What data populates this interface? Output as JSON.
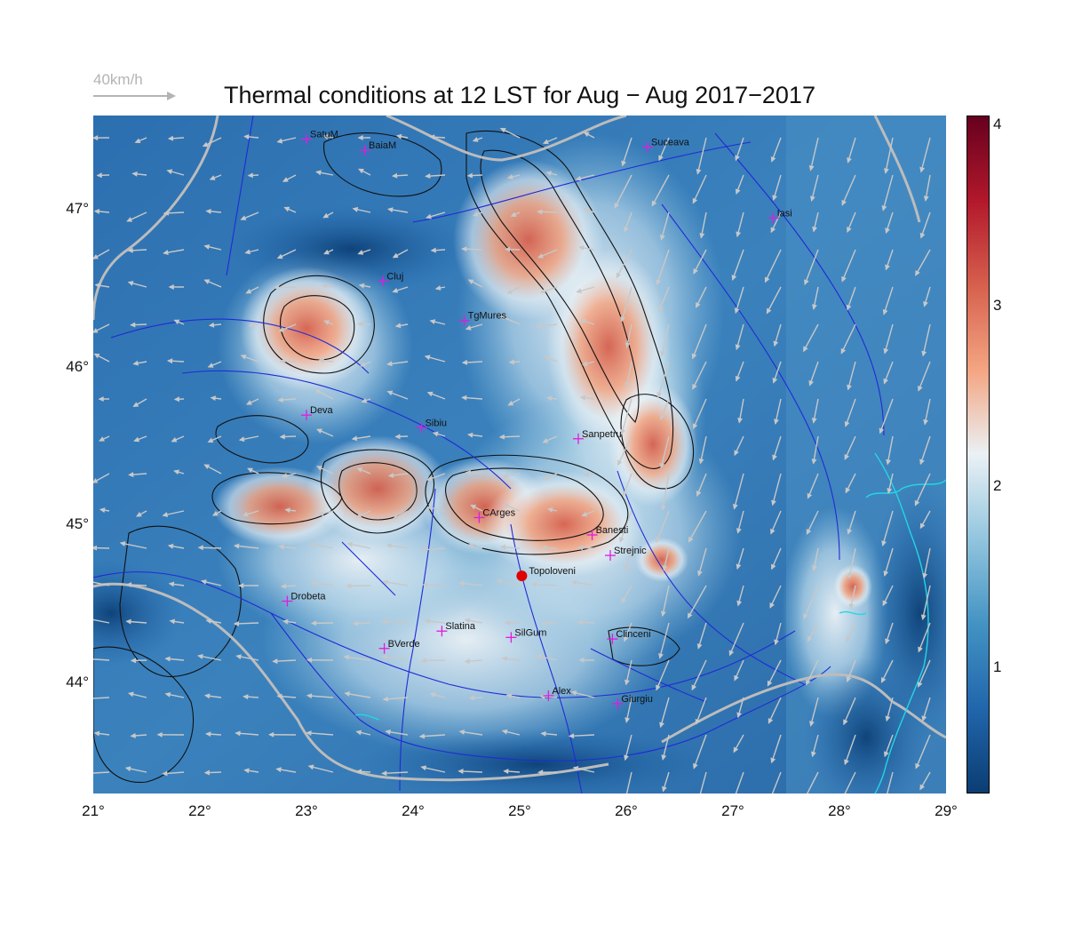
{
  "title": "Thermal conditions at 12 LST for Aug − Aug  2017−2017",
  "wind_legend": {
    "label": "40km/h",
    "color": "#b4b4b4"
  },
  "axes": {
    "x_ticks": [
      "21°",
      "22°",
      "23°",
      "24°",
      "25°",
      "26°",
      "27°",
      "28°",
      "29°"
    ],
    "x_values": [
      21,
      22,
      23,
      24,
      25,
      26,
      27,
      28,
      29
    ],
    "y_ticks": [
      "44°",
      "45°",
      "46°",
      "47°"
    ],
    "y_values": [
      44,
      45,
      46,
      47
    ],
    "lon_range": [
      21,
      29
    ],
    "lat_range": [
      43.3,
      47.6
    ]
  },
  "colorbar": {
    "range": [
      0.3,
      4.05
    ],
    "ticks": [
      "1",
      "2",
      "3",
      "4"
    ],
    "tick_values": [
      1,
      2,
      3,
      4
    ],
    "colors": [
      "#0b3d73",
      "#2166ac",
      "#4393c3",
      "#92c5de",
      "#eaf1f5",
      "#f4a582",
      "#d6604d",
      "#b2182b",
      "#67001f"
    ]
  },
  "stations": [
    {
      "name": "SatuM",
      "lon": 23.0,
      "lat": 47.45
    },
    {
      "name": "BaiaM",
      "lon": 23.55,
      "lat": 47.38
    },
    {
      "name": "Suceava",
      "lon": 26.2,
      "lat": 47.4
    },
    {
      "name": "Iasi",
      "lon": 27.38,
      "lat": 46.95
    },
    {
      "name": "Cluj",
      "lon": 23.72,
      "lat": 46.55
    },
    {
      "name": "TgMures",
      "lon": 24.48,
      "lat": 46.3
    },
    {
      "name": "Deva",
      "lon": 23.0,
      "lat": 45.7
    },
    {
      "name": "Sibiu",
      "lon": 24.08,
      "lat": 45.62
    },
    {
      "name": "Sanpetru",
      "lon": 25.55,
      "lat": 45.55
    },
    {
      "name": "CArges",
      "lon": 24.62,
      "lat": 45.05
    },
    {
      "name": "Banesti",
      "lon": 25.68,
      "lat": 44.94
    },
    {
      "name": "Strejnic",
      "lon": 25.85,
      "lat": 44.81
    },
    {
      "name": "Drobeta",
      "lon": 22.82,
      "lat": 44.52
    },
    {
      "name": "Slatina",
      "lon": 24.27,
      "lat": 44.33
    },
    {
      "name": "SilGum",
      "lon": 24.92,
      "lat": 44.29
    },
    {
      "name": "Clinceni",
      "lon": 25.87,
      "lat": 44.28
    },
    {
      "name": "BVerde",
      "lon": 23.73,
      "lat": 44.22
    },
    {
      "name": "Alex",
      "lon": 25.27,
      "lat": 43.92
    },
    {
      "name": "Giurgiu",
      "lon": 25.92,
      "lat": 43.87
    }
  ],
  "highlight": {
    "name": "Topoloveni",
    "lon": 25.02,
    "lat": 44.68,
    "color": "#e00000"
  },
  "thermal_hotspots": [
    {
      "lon": 23.0,
      "lat": 46.45,
      "value": 3.0
    },
    {
      "lon": 23.7,
      "lat": 45.35,
      "value": 3.6
    },
    {
      "lon": 22.95,
      "lat": 45.2,
      "value": 2.9
    },
    {
      "lon": 24.95,
      "lat": 45.2,
      "value": 2.9
    },
    {
      "lon": 25.6,
      "lat": 45.1,
      "value": 2.8
    },
    {
      "lon": 25.5,
      "lat": 46.8,
      "value": 2.9
    },
    {
      "lon": 25.9,
      "lat": 46.35,
      "value": 2.8
    },
    {
      "lon": 26.4,
      "lat": 45.6,
      "value": 2.7
    },
    {
      "lon": 28.1,
      "lat": 44.65,
      "value": 2.4
    }
  ]
}
